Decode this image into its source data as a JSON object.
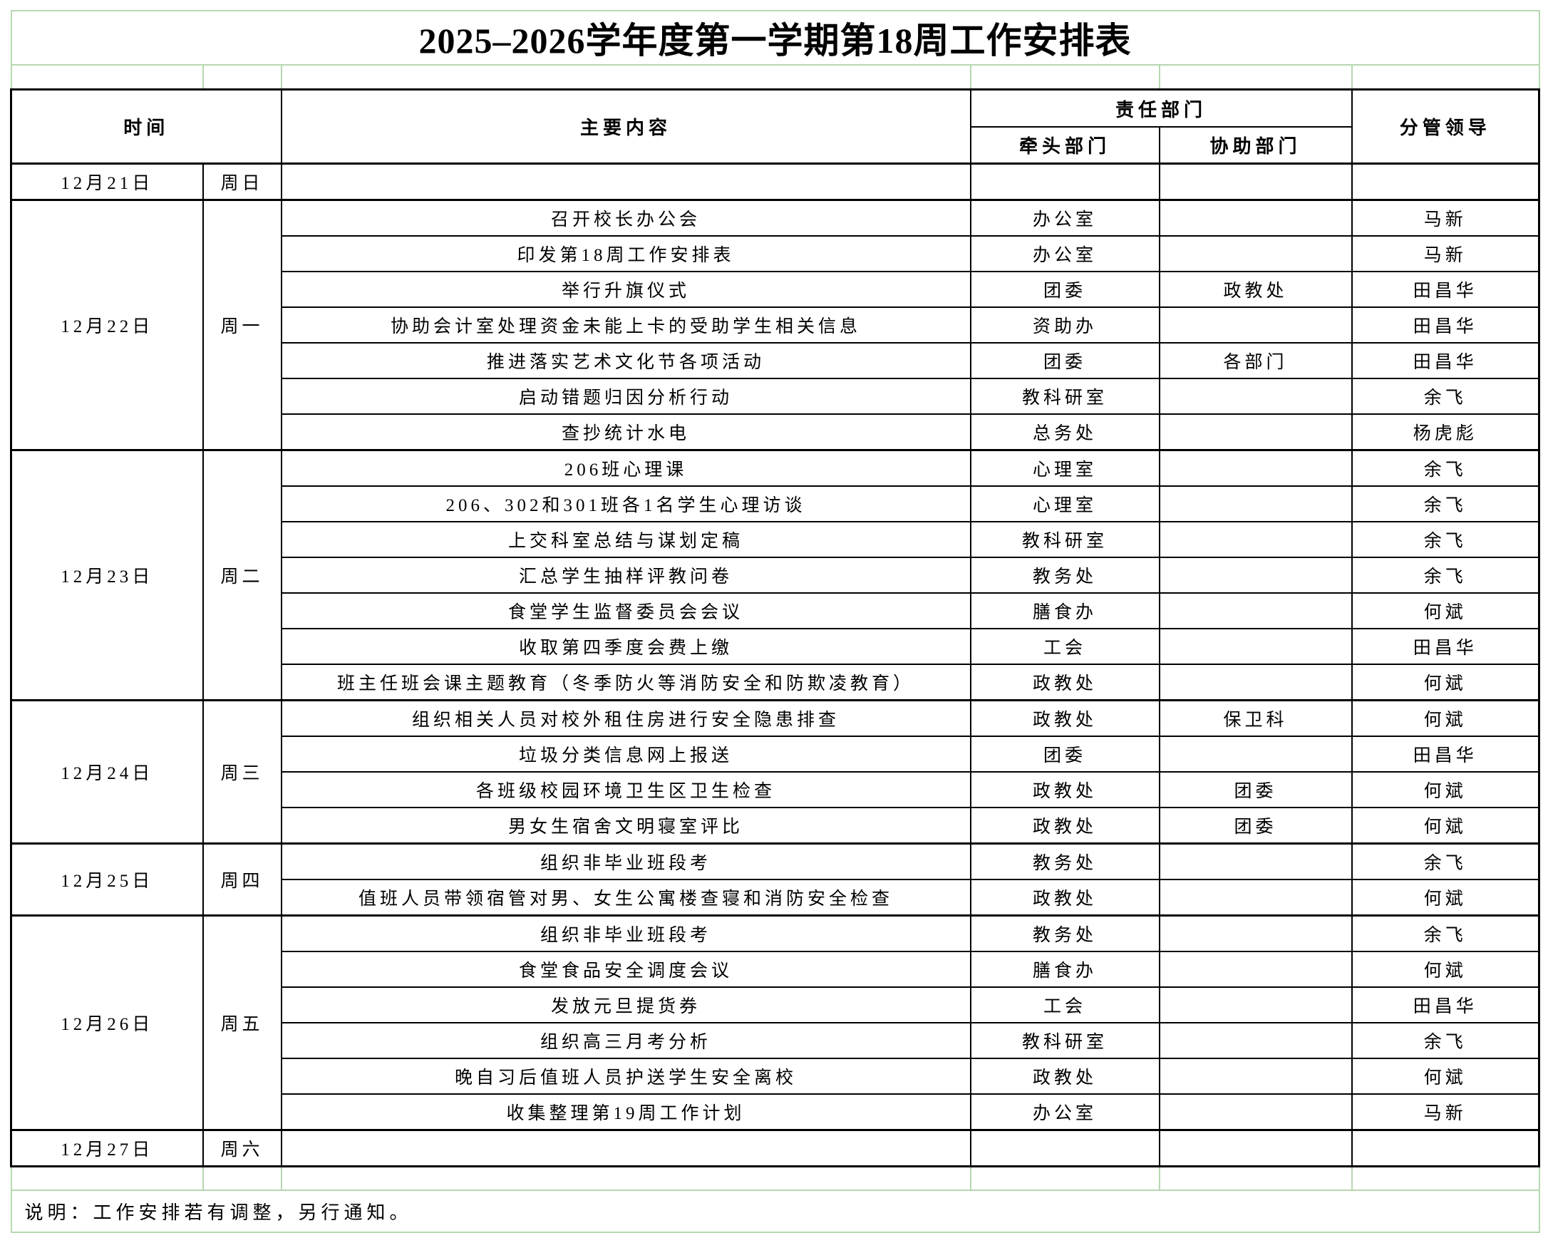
{
  "title": "2025–2026学年度第一学期第18周工作安排表",
  "columns": {
    "time": "时间",
    "content": "主要内容",
    "responsible": "责任部门",
    "lead": "牵头部门",
    "assist": "协助部门",
    "leader": "分管领导"
  },
  "schedule": [
    {
      "date": "12月21日",
      "day": "周日",
      "items": [
        {
          "content": "",
          "lead": "",
          "assist": "",
          "leader": ""
        }
      ]
    },
    {
      "date": "12月22日",
      "day": "周一",
      "items": [
        {
          "content": "召开校长办公会",
          "lead": "办公室",
          "assist": "",
          "leader": "马新"
        },
        {
          "content": "印发第18周工作安排表",
          "lead": "办公室",
          "assist": "",
          "leader": "马新"
        },
        {
          "content": "举行升旗仪式",
          "lead": "团委",
          "assist": "政教处",
          "leader": "田昌华"
        },
        {
          "content": "协助会计室处理资金未能上卡的受助学生相关信息",
          "lead": "资助办",
          "assist": "",
          "leader": "田昌华"
        },
        {
          "content": "推进落实艺术文化节各项活动",
          "lead": "团委",
          "assist": "各部门",
          "leader": "田昌华"
        },
        {
          "content": "启动错题归因分析行动",
          "lead": "教科研室",
          "assist": "",
          "leader": "余飞"
        },
        {
          "content": "查抄统计水电",
          "lead": "总务处",
          "assist": "",
          "leader": "杨虎彪"
        }
      ]
    },
    {
      "date": "12月23日",
      "day": "周二",
      "items": [
        {
          "content": "206班心理课",
          "lead": "心理室",
          "assist": "",
          "leader": "余飞"
        },
        {
          "content": "206、302和301班各1名学生心理访谈",
          "lead": "心理室",
          "assist": "",
          "leader": "余飞"
        },
        {
          "content": "上交科室总结与谋划定稿",
          "lead": "教科研室",
          "assist": "",
          "leader": "余飞"
        },
        {
          "content": "汇总学生抽样评教问卷",
          "lead": "教务处",
          "assist": "",
          "leader": "余飞"
        },
        {
          "content": "食堂学生监督委员会会议",
          "lead": "膳食办",
          "assist": "",
          "leader": "何斌"
        },
        {
          "content": "收取第四季度会费上缴",
          "lead": "工会",
          "assist": "",
          "leader": "田昌华"
        },
        {
          "content": "班主任班会课主题教育（冬季防火等消防安全和防欺凌教育）",
          "lead": "政教处",
          "assist": "",
          "leader": "何斌"
        }
      ]
    },
    {
      "date": "12月24日",
      "day": "周三",
      "items": [
        {
          "content": "组织相关人员对校外租住房进行安全隐患排查",
          "lead": "政教处",
          "assist": "保卫科",
          "leader": "何斌"
        },
        {
          "content": "垃圾分类信息网上报送",
          "lead": "团委",
          "assist": "",
          "leader": "田昌华"
        },
        {
          "content": "各班级校园环境卫生区卫生检查",
          "lead": "政教处",
          "assist": "团委",
          "leader": "何斌"
        },
        {
          "content": "男女生宿舍文明寝室评比",
          "lead": "政教处",
          "assist": "团委",
          "leader": "何斌"
        }
      ]
    },
    {
      "date": "12月25日",
      "day": "周四",
      "items": [
        {
          "content": "组织非毕业班段考",
          "lead": "教务处",
          "assist": "",
          "leader": "余飞"
        },
        {
          "content": "值班人员带领宿管对男、女生公寓楼查寝和消防安全检查",
          "lead": "政教处",
          "assist": "",
          "leader": "何斌"
        }
      ]
    },
    {
      "date": "12月26日",
      "day": "周五",
      "items": [
        {
          "content": "组织非毕业班段考",
          "lead": "教务处",
          "assist": "",
          "leader": "余飞"
        },
        {
          "content": "食堂食品安全调度会议",
          "lead": "膳食办",
          "assist": "",
          "leader": "何斌"
        },
        {
          "content": "发放元旦提货券",
          "lead": "工会",
          "assist": "",
          "leader": "田昌华"
        },
        {
          "content": "组织高三月考分析",
          "lead": "教科研室",
          "assist": "",
          "leader": "余飞"
        },
        {
          "content": "晚自习后值班人员护送学生安全离校",
          "lead": "政教处",
          "assist": "",
          "leader": "何斌"
        },
        {
          "content": "收集整理第19周工作计划",
          "lead": "办公室",
          "assist": "",
          "leader": "马新"
        }
      ]
    },
    {
      "date": "12月27日",
      "day": "周六",
      "items": [
        {
          "content": "",
          "lead": "",
          "assist": "",
          "leader": ""
        }
      ]
    }
  ],
  "footer": {
    "note": "说明：工作安排若有调整，另行通知。"
  },
  "colors": {
    "grid_green": "#b7d7b0",
    "border_black": "#000000",
    "background": "#ffffff",
    "text": "#000000"
  }
}
